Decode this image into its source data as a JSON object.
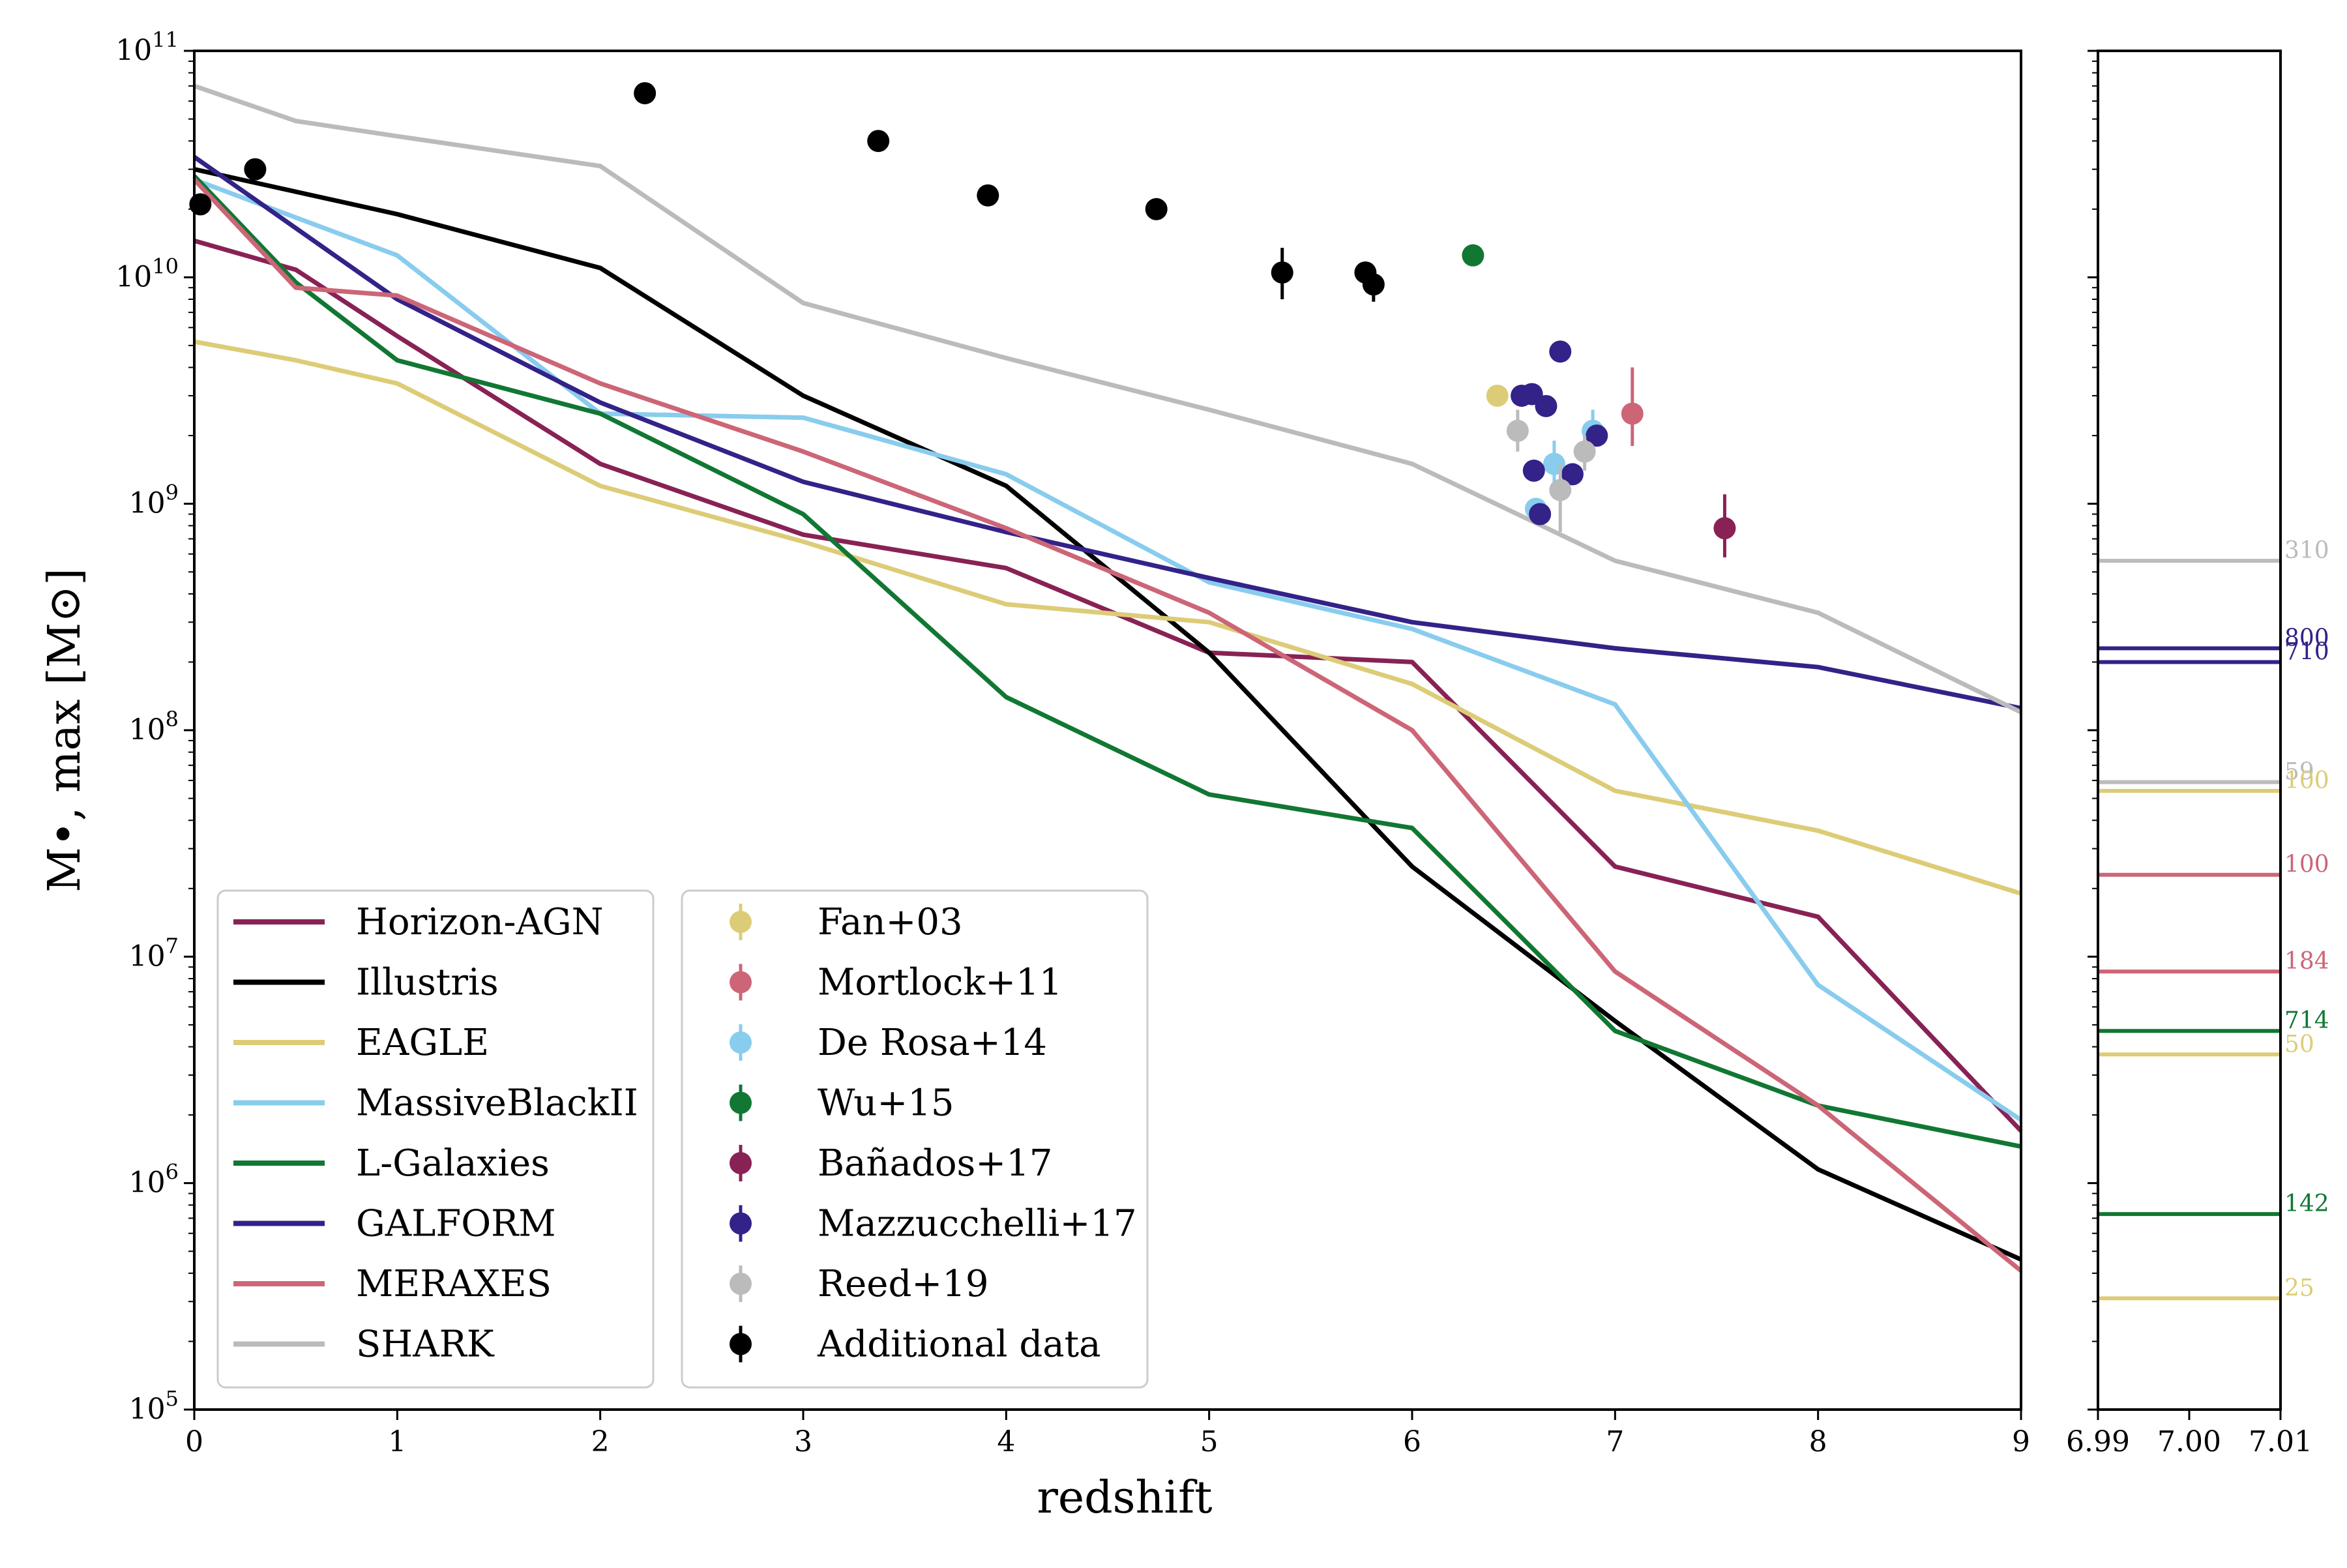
{
  "chart_data": [
    {
      "type": "line",
      "xlabel": "redshift",
      "ylabel": "M•, max [M⊙]",
      "xlim": [
        0,
        9
      ],
      "ylim": [
        100000,
        100000000000
      ],
      "yscale": "log",
      "x_ticks": [
        "0",
        "1",
        "2",
        "3",
        "4",
        "5",
        "6",
        "7",
        "8",
        "9"
      ],
      "y_tick_bases": [
        "10",
        "10",
        "10",
        "10",
        "10",
        "10",
        "10"
      ],
      "y_tick_exps": [
        "5",
        "6",
        "7",
        "8",
        "9",
        "10",
        "11"
      ],
      "series": [
        {
          "name": "Horizon-AGN",
          "color": "#882255",
          "x": [
            0,
            0.5,
            1,
            2,
            3,
            4,
            5,
            6,
            7,
            8,
            9
          ],
          "values": [
            14500000000,
            10800000000,
            5500000000,
            1500000000,
            730000000,
            520000000,
            220000000,
            200000000,
            25000000,
            15000000,
            1700000
          ]
        },
        {
          "name": "Illustris",
          "color": "#000000",
          "x": [
            0,
            1,
            2,
            3,
            4,
            5,
            6,
            7,
            8,
            9
          ],
          "values": [
            30000000000,
            19000000000,
            11000000000,
            3000000000,
            1200000000,
            220000000,
            25000000,
            5200000,
            1150000,
            460000
          ]
        },
        {
          "name": "EAGLE",
          "color": "#DDCC77",
          "x": [
            0,
            0.5,
            1,
            2,
            3,
            4,
            5,
            6,
            7,
            8,
            9
          ],
          "values": [
            5200000000,
            4300000000,
            3400000000,
            1200000000,
            680000000,
            360000000,
            300000000,
            160000000,
            54000000,
            36000000,
            19000000
          ]
        },
        {
          "name": "MassiveBlackII",
          "color": "#88CCEE",
          "x": [
            0,
            1,
            2,
            3,
            4,
            5,
            6,
            7,
            8,
            9
          ],
          "values": [
            27000000000,
            12500000000,
            2500000000,
            2400000000,
            1350000000,
            450000000,
            280000000,
            130000000,
            7500000,
            1900000
          ]
        },
        {
          "name": "L-Galaxies",
          "color": "#117733",
          "x": [
            0,
            0.5,
            1,
            2,
            3,
            4,
            5,
            6,
            7,
            8,
            9
          ],
          "values": [
            28000000000,
            9500000000,
            4300000000,
            2500000000,
            900000000,
            140000000,
            52000000,
            37000000,
            4700000,
            2200000,
            1450000
          ]
        },
        {
          "name": "GALFORM",
          "color": "#332288",
          "x": [
            0,
            1,
            2,
            3,
            4,
            5,
            6,
            7,
            8,
            9
          ],
          "values": [
            34000000000,
            8000000000,
            2800000000,
            1250000000,
            750000000,
            470000000,
            300000000,
            230000000,
            190000000,
            125000000
          ]
        },
        {
          "name": "MERAXES",
          "color": "#CC6677",
          "x": [
            0,
            0.5,
            1,
            2,
            3,
            4,
            5,
            6,
            7,
            8,
            9
          ],
          "values": [
            27000000000,
            9000000000,
            8300000000,
            3400000000,
            1700000000,
            780000000,
            330000000,
            100000000,
            8600000,
            2200000,
            410000
          ]
        },
        {
          "name": "SHARK",
          "color": "#BBBBBB",
          "x": [
            0,
            0.5,
            1,
            2,
            3,
            4,
            5,
            6,
            7,
            8,
            9
          ],
          "values": [
            70000000000,
            49000000000,
            42000000000,
            31000000000,
            7700000000,
            4400000000,
            2600000000,
            1500000000,
            560000000,
            330000000,
            120000000
          ]
        }
      ],
      "observations": [
        {
          "name": "Fan+03",
          "color": "#DDCC77",
          "points": [
            {
              "x": 6.42,
              "y": 3000000000
            }
          ]
        },
        {
          "name": "Mortlock+11",
          "color": "#CC6677",
          "points": [
            {
              "x": 7.085,
              "y": 2500000000,
              "y_low": 1800000000,
              "y_high": 4000000000
            }
          ]
        },
        {
          "name": "De Rosa+14",
          "color": "#88CCEE",
          "points": [
            {
              "x": 6.61,
              "y": 950000000
            },
            {
              "x": 6.7,
              "y": 1500000000,
              "y_low": 1200000000,
              "y_high": 1900000000
            },
            {
              "x": 6.89,
              "y": 2100000000,
              "y_low": 1700000000,
              "y_high": 2600000000
            }
          ]
        },
        {
          "name": "Wu+15",
          "color": "#117733",
          "points": [
            {
              "x": 6.3,
              "y": 12500000000
            }
          ]
        },
        {
          "name": "Bañados+17",
          "color": "#882255",
          "points": [
            {
              "x": 7.54,
              "y": 780000000,
              "y_low": 580000000,
              "y_high": 1100000000
            }
          ]
        },
        {
          "name": "Mazzucchelli+17",
          "color": "#332288",
          "points": [
            {
              "x": 6.54,
              "y": 3000000000
            },
            {
              "x": 6.59,
              "y": 3050000000
            },
            {
              "x": 6.66,
              "y": 2700000000
            },
            {
              "x": 6.73,
              "y": 4700000000
            },
            {
              "x": 6.6,
              "y": 1400000000
            },
            {
              "x": 6.63,
              "y": 900000000
            },
            {
              "x": 6.79,
              "y": 1350000000
            },
            {
              "x": 6.91,
              "y": 2000000000
            }
          ]
        },
        {
          "name": "Reed+19",
          "color": "#BBBBBB",
          "points": [
            {
              "x": 6.52,
              "y": 2100000000,
              "y_low": 1700000000,
              "y_high": 2600000000
            },
            {
              "x": 6.73,
              "y": 1150000000,
              "y_low": 750000000,
              "y_high": 1500000000
            },
            {
              "x": 6.85,
              "y": 1700000000,
              "y_low": 1400000000,
              "y_high": 2000000000
            }
          ]
        },
        {
          "name": "Additional data",
          "color": "#000000",
          "points": [
            {
              "x": 0.03,
              "y": 21000000000
            },
            {
              "x": 0.3,
              "y": 30000000000
            },
            {
              "x": 2.22,
              "y": 65000000000
            },
            {
              "x": 3.37,
              "y": 40000000000
            },
            {
              "x": 3.91,
              "y": 23000000000
            },
            {
              "x": 4.74,
              "y": 20000000000
            },
            {
              "x": 5.36,
              "y": 10500000000,
              "y_low": 8000000000,
              "y_high": 13500000000
            },
            {
              "x": 5.77,
              "y": 10500000000
            },
            {
              "x": 5.81,
              "y": 9300000000,
              "y_low": 7800000000,
              "y_high": 11000000000
            }
          ]
        }
      ],
      "legend_position": "lower-left"
    },
    {
      "type": "line",
      "title": "",
      "xlim": [
        6.99,
        7.01
      ],
      "x_ticks": [
        "6.99",
        "7.00",
        "7.01"
      ],
      "ylim": [
        100000,
        100000000000
      ],
      "yscale": "log",
      "lines": [
        {
          "value": 560000000,
          "label": "310",
          "color": "#BBBBBB"
        },
        {
          "value": 230000000,
          "label": "800",
          "color": "#332288"
        },
        {
          "value": 200000000,
          "label": "710",
          "color": "#332288"
        },
        {
          "value": 59000000,
          "label": "59",
          "color": "#BBBBBB"
        },
        {
          "value": 54000000,
          "label": "100",
          "color": "#DDCC77"
        },
        {
          "value": 23000000,
          "label": "100",
          "color": "#CC6677"
        },
        {
          "value": 8600000,
          "label": "184",
          "color": "#CC6677"
        },
        {
          "value": 4700000,
          "label": "714",
          "color": "#117733"
        },
        {
          "value": 3700000,
          "label": "50",
          "color": "#DDCC77"
        },
        {
          "value": 730000,
          "label": "142",
          "color": "#117733"
        },
        {
          "value": 310000,
          "label": "25",
          "color": "#DDCC77"
        }
      ]
    }
  ]
}
